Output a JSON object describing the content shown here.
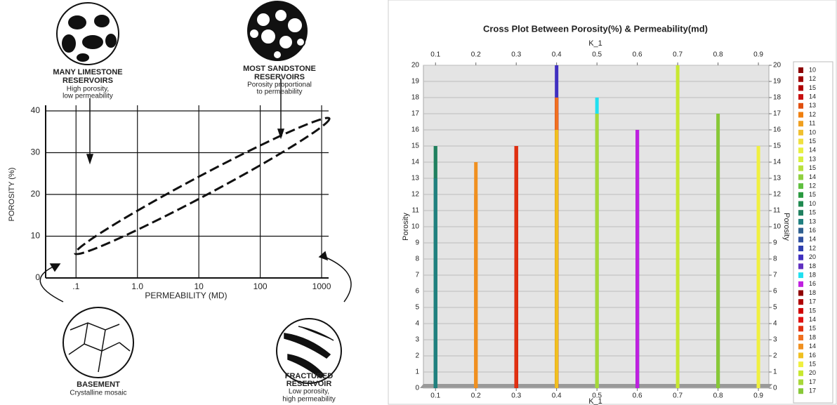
{
  "chart_data": [
    {
      "type": "diagram",
      "xlabel": "PERMEABILITY (MD)",
      "ylabel": "POROSITY (%)",
      "xlog": true,
      "xlim": [
        0.032,
        1300
      ],
      "ylim": [
        0,
        40
      ],
      "xticks": [
        {
          "value": 0.1,
          "label": ".1"
        },
        {
          "value": 1,
          "label": "1.0"
        },
        10,
        100,
        1000
      ],
      "yticks": [
        0,
        10,
        20,
        30,
        40
      ],
      "grid": true,
      "annotations": [
        [
          "MANY LIMESTONE",
          "RESERVOIRS",
          "High porosity,",
          "low permeability"
        ],
        [
          "MOST SANDSTONE",
          "RESERVOIRS",
          "Porosity proportional",
          "to permeability"
        ],
        [
          "BASEMENT",
          "Crystalline mosaic"
        ],
        [
          "FRACTURED",
          "RESERVOIR",
          "Low porosity,",
          "high permeability"
        ]
      ]
    },
    {
      "type": "drop",
      "title": "Cross Plot Between Porosity(%) & Permeability(md)",
      "xlabel": "K_1",
      "x2label": "K_1",
      "ylabel": "Porosity",
      "y2label": "Porosity",
      "xlim": [
        0.07,
        0.926
      ],
      "xticks": [
        0.1,
        0.2,
        0.3,
        0.4,
        0.5,
        0.6,
        0.7,
        0.8,
        0.9
      ],
      "x2ticks": [
        0.1,
        0.2,
        0.3,
        0.4,
        0.5,
        0.6,
        0.7,
        0.8,
        0.9
      ],
      "ylim": [
        0,
        20
      ],
      "yticks": [
        0,
        1,
        2,
        3,
        4,
        5,
        6,
        7,
        8,
        9,
        10,
        11,
        12,
        13,
        14,
        15,
        16,
        17,
        18,
        19,
        20
      ],
      "y2lim": [
        0,
        20
      ],
      "y2ticks": [
        0,
        1,
        2,
        3,
        4,
        5,
        6,
        7,
        8,
        9,
        10,
        11,
        12,
        13,
        14,
        15,
        16,
        17,
        18,
        19,
        20
      ],
      "grid": true,
      "legend": "right",
      "series": [
        {
          "name": "10",
          "color": "#8b0000",
          "x": [
            0.3
          ],
          "values": [
            10
          ]
        },
        {
          "name": "12",
          "color": "#9e0000",
          "x": [
            0.3
          ],
          "values": [
            12
          ]
        },
        {
          "name": "15",
          "color": "#b00000",
          "x": [
            0.3
          ],
          "values": [
            15
          ]
        },
        {
          "name": "14",
          "color": "#c81010",
          "x": [
            0.3
          ],
          "values": [
            14
          ]
        },
        {
          "name": "13",
          "color": "#e05010",
          "x": [
            0.4
          ],
          "values": [
            13
          ]
        },
        {
          "name": "12",
          "color": "#f08010",
          "x": [
            0.2
          ],
          "values": [
            12
          ]
        },
        {
          "name": "11",
          "color": "#f0a020",
          "x": [
            0.2
          ],
          "values": [
            11
          ]
        },
        {
          "name": "10",
          "color": "#f0c030",
          "x": [
            0.4
          ],
          "values": [
            10
          ]
        },
        {
          "name": "15",
          "color": "#f0e040",
          "x": [
            0.4
          ],
          "values": [
            15
          ]
        },
        {
          "name": "14",
          "color": "#e8f040",
          "x": [
            0.4
          ],
          "values": [
            14
          ]
        },
        {
          "name": "13",
          "color": "#d8f040",
          "x": [
            0.5
          ],
          "values": [
            13
          ]
        },
        {
          "name": "15",
          "color": "#b8e040",
          "x": [
            0.5
          ],
          "values": [
            15
          ]
        },
        {
          "name": "14",
          "color": "#90d040",
          "x": [
            0.8
          ],
          "values": [
            14
          ]
        },
        {
          "name": "12",
          "color": "#60c040",
          "x": [
            0.8
          ],
          "values": [
            12
          ]
        },
        {
          "name": "15",
          "color": "#2a9a40",
          "x": [
            0.1
          ],
          "values": [
            15
          ]
        },
        {
          "name": "10",
          "color": "#208a50",
          "x": [
            0.1
          ],
          "values": [
            10
          ]
        },
        {
          "name": "15",
          "color": "#208060",
          "x": [
            0.1
          ],
          "values": [
            15
          ]
        },
        {
          "name": "13",
          "color": "#208080",
          "x": [
            0.1
          ],
          "values": [
            13
          ]
        },
        {
          "name": "16",
          "color": "#306090",
          "x": [
            0.6
          ],
          "values": [
            16
          ]
        },
        {
          "name": "14",
          "color": "#3050a0",
          "x": [
            0.6
          ],
          "values": [
            14
          ]
        },
        {
          "name": "12",
          "color": "#3040b0",
          "x": [
            0.6
          ],
          "values": [
            12
          ]
        },
        {
          "name": "20",
          "color": "#4030c0",
          "x": [
            0.4
          ],
          "values": [
            20
          ]
        },
        {
          "name": "18",
          "color": "#6030c0",
          "x": [
            0.4
          ],
          "values": [
            18
          ]
        },
        {
          "name": "18",
          "color": "#20e0f0",
          "x": [
            0.5
          ],
          "values": [
            18
          ]
        },
        {
          "name": "16",
          "color": "#c020e0",
          "x": [
            0.6
          ],
          "values": [
            16
          ]
        },
        {
          "name": "18",
          "color": "#900000",
          "x": [
            0.4
          ],
          "values": [
            18
          ]
        },
        {
          "name": "17",
          "color": "#b00000",
          "x": [
            0.4
          ],
          "values": [
            17
          ]
        },
        {
          "name": "15",
          "color": "#d00000",
          "x": [
            0.3
          ],
          "values": [
            15
          ]
        },
        {
          "name": "14",
          "color": "#e01010",
          "x": [
            0.3
          ],
          "values": [
            14
          ]
        },
        {
          "name": "15",
          "color": "#e03010",
          "x": [
            0.3
          ],
          "values": [
            15
          ]
        },
        {
          "name": "18",
          "color": "#f07020",
          "x": [
            0.4
          ],
          "values": [
            18
          ]
        },
        {
          "name": "14",
          "color": "#f09020",
          "x": [
            0.2
          ],
          "values": [
            14
          ]
        },
        {
          "name": "16",
          "color": "#f0c020",
          "x": [
            0.4
          ],
          "values": [
            16
          ]
        },
        {
          "name": "15",
          "color": "#f0f040",
          "x": [
            0.9
          ],
          "values": [
            15
          ]
        },
        {
          "name": "20",
          "color": "#c8e830",
          "x": [
            0.7
          ],
          "values": [
            20
          ]
        },
        {
          "name": "17",
          "color": "#a8d838",
          "x": [
            0.5
          ],
          "values": [
            17
          ]
        },
        {
          "name": "17",
          "color": "#88c838",
          "x": [
            0.8
          ],
          "values": [
            17
          ]
        }
      ]
    }
  ]
}
